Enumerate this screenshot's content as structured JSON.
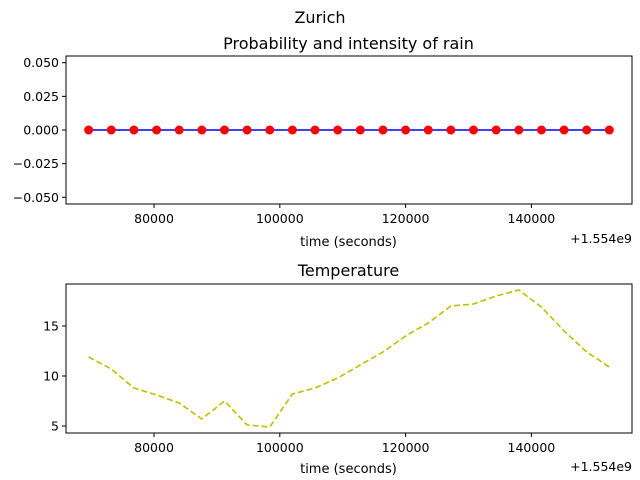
{
  "suptitle": "Zurich",
  "chart_data": [
    {
      "type": "line",
      "title": "Probability and intensity of rain",
      "xlabel": "time (seconds)",
      "ylabel": "",
      "x_offset_label": "+1.554e9",
      "x_offset": 1554000000,
      "xlim": [
        1554066000,
        1554156000
      ],
      "ylim": [
        -0.055,
        0.055
      ],
      "xticks": [
        1554080000,
        1554100000,
        1554120000,
        1554140000
      ],
      "xtick_labels": [
        "80000",
        "100000",
        "120000",
        "140000"
      ],
      "yticks": [
        -0.05,
        -0.025,
        0.0,
        0.025,
        0.05
      ],
      "ytick_labels": [
        "−0.050",
        "−0.025",
        "0.000",
        "0.025",
        "0.050"
      ],
      "grid": false,
      "x": [
        1554069600,
        1554073200,
        1554076800,
        1554080400,
        1554084000,
        1554087600,
        1554091200,
        1554094800,
        1554098400,
        1554102000,
        1554105600,
        1554109200,
        1554112800,
        1554116400,
        1554120000,
        1554123600,
        1554127200,
        1554130800,
        1554134400,
        1554138000,
        1554141600,
        1554145200,
        1554148800,
        1554152400
      ],
      "series": [
        {
          "values": [
            0,
            0,
            0,
            0,
            0,
            0,
            0,
            0,
            0,
            0,
            0,
            0,
            0,
            0,
            0,
            0,
            0,
            0,
            0,
            0,
            0,
            0,
            0,
            0
          ],
          "line_color": "#0000ff",
          "marker_color": "#ff0000",
          "marker": "circle"
        }
      ]
    },
    {
      "type": "line",
      "title": "Temperature",
      "xlabel": "time (seconds)",
      "ylabel": "",
      "x_offset_label": "+1.554e9",
      "x_offset": 1554000000,
      "xlim": [
        1554066000,
        1554156000
      ],
      "ylim": [
        4.3,
        19.2
      ],
      "xticks": [
        1554080000,
        1554100000,
        1554120000,
        1554140000
      ],
      "xtick_labels": [
        "80000",
        "100000",
        "120000",
        "140000"
      ],
      "yticks": [
        5,
        10,
        15
      ],
      "ytick_labels": [
        "5",
        "10",
        "15"
      ],
      "grid": false,
      "x": [
        1554069600,
        1554073200,
        1554076800,
        1554080400,
        1554084000,
        1554087600,
        1554091200,
        1554094800,
        1554098400,
        1554102000,
        1554105600,
        1554109200,
        1554112800,
        1554116400,
        1554120000,
        1554123600,
        1554127200,
        1554130800,
        1554134400,
        1554138000,
        1554141600,
        1554145200,
        1554148800,
        1554152400
      ],
      "series": [
        {
          "values": [
            11.9,
            10.7,
            8.8,
            8.1,
            7.3,
            5.7,
            7.5,
            5.1,
            4.9,
            8.2,
            8.8,
            9.8,
            11.1,
            12.4,
            14.0,
            15.3,
            17.0,
            17.2,
            18.0,
            18.6,
            16.9,
            14.5,
            12.4,
            10.9
          ],
          "line_color": "#bfbf00",
          "line_style": "dashed"
        }
      ]
    }
  ]
}
